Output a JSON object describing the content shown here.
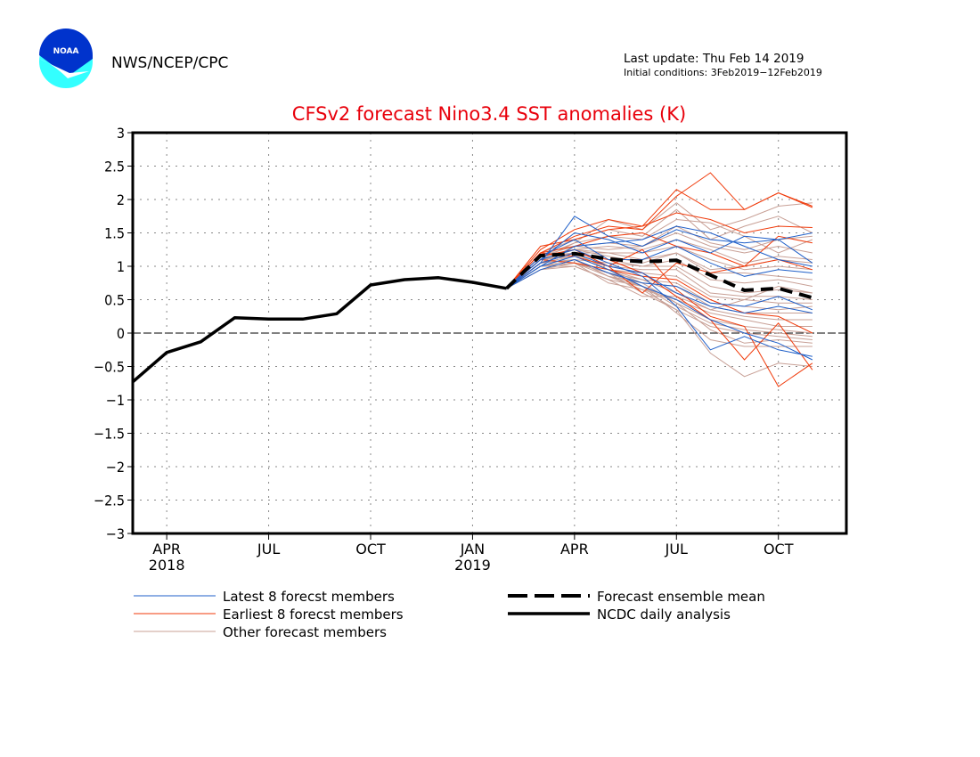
{
  "header": {
    "logo_text": "NOAA",
    "organization": "NWS/NCEP/CPC",
    "last_update": "Last update: Thu Feb 14 2019",
    "initial_conditions": "Initial conditions: 3Feb2019−12Feb2019"
  },
  "colors": {
    "title": "#e8000b",
    "latest": "#1f5fc8",
    "earliest": "#f03a0a",
    "other": "#c8a096",
    "observed": "#000000",
    "mean": "#000000",
    "logo_dark": "#0033cc",
    "logo_light": "#33ffff"
  },
  "chart_data": {
    "type": "line",
    "title": "CFSv2 forecast Nino3.4 SST anomalies (K)",
    "xlabel": "",
    "ylabel": "",
    "ylim": [
      -3,
      3
    ],
    "yticks": [
      3,
      2.5,
      2,
      1.5,
      1,
      0.5,
      0,
      -0.5,
      -1,
      -1.5,
      -2,
      -2.5,
      -3
    ],
    "ytick_labels": [
      "3",
      "2.5",
      "2",
      "1.5",
      "1",
      "0.5",
      "0",
      "−0.5",
      "−1",
      "−1.5",
      "−2",
      "−2.5",
      "−3"
    ],
    "xlim_months": [
      0,
      21
    ],
    "x_note": "month index 0 = Mar 2018",
    "xticks": [
      {
        "month": 1,
        "label": "APR",
        "year": "2018"
      },
      {
        "month": 4,
        "label": "JUL",
        "year": ""
      },
      {
        "month": 7,
        "label": "OCT",
        "year": ""
      },
      {
        "month": 10,
        "label": "JAN",
        "year": "2019"
      },
      {
        "month": 13,
        "label": "APR",
        "year": ""
      },
      {
        "month": 16,
        "label": "JUL",
        "year": ""
      },
      {
        "month": 19,
        "label": "OCT",
        "year": ""
      }
    ],
    "grid": true,
    "zero_line": true,
    "legend": [
      {
        "label": "Latest 8 forecst members",
        "key": "latest",
        "style": "thin"
      },
      {
        "label": "Earliest 8 forecst members",
        "key": "earliest",
        "style": "thin"
      },
      {
        "label": "Other forecast members",
        "key": "other",
        "style": "thin"
      },
      {
        "label": "Forecast ensemble mean",
        "key": "mean",
        "style": "dashed"
      },
      {
        "label": "NCDC daily analysis",
        "key": "observed",
        "style": "solid"
      }
    ],
    "legend_placement": "bottom",
    "observed": {
      "name": "NCDC daily analysis",
      "x": [
        0,
        1,
        2,
        3,
        4,
        5,
        6,
        7,
        8,
        9,
        10,
        11
      ],
      "values": [
        -0.73,
        -0.29,
        -0.13,
        0.23,
        0.21,
        0.21,
        0.29,
        0.72,
        0.8,
        0.83,
        0.76,
        0.67
      ]
    },
    "forecast_x": [
      11,
      12,
      13,
      14,
      15,
      16,
      17,
      18,
      19,
      20
    ],
    "ensemble_mean": {
      "name": "Forecast ensemble mean",
      "values": [
        0.67,
        1.16,
        1.19,
        1.11,
        1.07,
        1.09,
        0.87,
        0.64,
        0.67,
        0.53
      ]
    },
    "latest_members": [
      [
        0.67,
        1.05,
        1.75,
        1.45,
        1.3,
        1.55,
        1.4,
        1.35,
        1.4,
        1.05
      ],
      [
        0.67,
        1.1,
        1.5,
        1.4,
        1.2,
        1.4,
        1.2,
        1.45,
        1.4,
        1.5
      ],
      [
        0.67,
        1.0,
        1.3,
        1.35,
        1.4,
        1.6,
        1.5,
        1.3,
        1.1,
        1.0
      ],
      [
        0.67,
        1.15,
        1.4,
        1.1,
        1.1,
        1.3,
        1.05,
        0.85,
        0.95,
        0.9
      ],
      [
        0.67,
        0.95,
        1.1,
        0.9,
        0.75,
        0.7,
        0.45,
        0.4,
        0.55,
        0.35
      ],
      [
        0.67,
        1.05,
        1.2,
        1.0,
        0.9,
        0.6,
        0.4,
        0.3,
        0.4,
        0.3
      ],
      [
        0.67,
        1.1,
        1.25,
        1.05,
        0.85,
        0.4,
        -0.25,
        -0.05,
        -0.25,
        -0.35
      ],
      [
        0.67,
        1.0,
        1.15,
        0.95,
        0.7,
        0.5,
        0.2,
        0.0,
        -0.15,
        -0.4
      ]
    ],
    "earliest_members": [
      [
        0.67,
        1.25,
        1.55,
        1.7,
        1.6,
        2.15,
        1.85,
        1.85,
        2.1,
        1.9
      ],
      [
        0.67,
        1.2,
        1.45,
        1.6,
        1.55,
        2.05,
        2.4,
        1.85,
        2.1,
        1.88
      ],
      [
        0.67,
        1.3,
        1.4,
        1.55,
        1.6,
        1.8,
        1.7,
        1.5,
        1.6,
        1.58
      ],
      [
        0.67,
        1.2,
        1.3,
        1.45,
        1.5,
        1.3,
        1.2,
        1.0,
        1.45,
        1.35
      ],
      [
        0.67,
        1.15,
        1.25,
        1.0,
        0.6,
        1.05,
        0.9,
        1.0,
        1.1,
        0.95
      ],
      [
        0.67,
        1.1,
        1.05,
        0.95,
        0.85,
        0.8,
        0.5,
        0.3,
        0.25,
        0.0
      ],
      [
        0.67,
        1.2,
        1.15,
        1.0,
        1.25,
        0.65,
        0.25,
        0.1,
        -0.8,
        -0.45
      ],
      [
        0.67,
        1.05,
        1.2,
        1.1,
        0.9,
        0.55,
        0.2,
        -0.4,
        0.15,
        -0.55
      ]
    ],
    "other_members": [
      [
        0.67,
        1.15,
        1.35,
        1.7,
        1.55,
        1.95,
        1.55,
        1.7,
        1.9,
        1.95
      ],
      [
        0.67,
        1.2,
        1.4,
        1.55,
        1.45,
        1.85,
        1.4,
        1.6,
        1.75,
        1.5
      ],
      [
        0.67,
        1.1,
        1.35,
        1.45,
        1.4,
        1.7,
        1.65,
        1.45,
        1.2,
        1.4
      ],
      [
        0.67,
        1.15,
        1.3,
        1.35,
        1.3,
        1.5,
        1.3,
        1.2,
        1.3,
        1.2
      ],
      [
        0.67,
        1.1,
        1.25,
        1.3,
        1.25,
        1.4,
        1.25,
        1.05,
        1.15,
        1.1
      ],
      [
        0.67,
        1.05,
        1.2,
        1.2,
        1.2,
        1.3,
        1.1,
        0.95,
        1.0,
        0.95
      ],
      [
        0.67,
        1.1,
        1.25,
        1.15,
        1.05,
        1.2,
        0.9,
        0.9,
        0.85,
        0.8
      ],
      [
        0.67,
        1.15,
        1.2,
        1.1,
        1.0,
        1.1,
        0.8,
        0.75,
        0.8,
        0.7
      ],
      [
        0.67,
        1.0,
        1.1,
        1.05,
        1.0,
        1.0,
        0.7,
        0.6,
        0.65,
        0.6
      ],
      [
        0.67,
        1.05,
        1.15,
        1.0,
        0.95,
        0.95,
        0.6,
        0.55,
        0.55,
        0.5
      ],
      [
        0.67,
        1.1,
        1.2,
        0.95,
        0.9,
        0.85,
        0.55,
        0.5,
        0.45,
        0.45
      ],
      [
        0.67,
        1.0,
        1.05,
        0.9,
        0.8,
        0.75,
        0.45,
        0.4,
        0.35,
        0.4
      ],
      [
        0.67,
        1.05,
        1.1,
        0.85,
        0.75,
        0.7,
        0.4,
        0.3,
        0.3,
        0.3
      ],
      [
        0.67,
        0.95,
        1.0,
        0.8,
        0.55,
        0.55,
        0.35,
        0.25,
        0.2,
        0.2
      ],
      [
        0.67,
        1.0,
        1.05,
        0.75,
        0.65,
        0.5,
        0.3,
        0.2,
        0.1,
        0.1
      ],
      [
        0.67,
        1.05,
        1.1,
        0.85,
        0.7,
        0.45,
        0.2,
        0.1,
        0.05,
        0.0
      ],
      [
        0.67,
        1.0,
        1.0,
        0.8,
        0.7,
        0.4,
        0.15,
        0.05,
        0.0,
        -0.05
      ],
      [
        0.67,
        0.95,
        1.05,
        0.85,
        0.65,
        0.35,
        0.1,
        0.0,
        -0.05,
        -0.1
      ],
      [
        0.67,
        1.1,
        1.15,
        0.95,
        0.75,
        0.45,
        0.05,
        -0.15,
        -0.1,
        -0.15
      ],
      [
        0.67,
        1.05,
        1.1,
        0.9,
        0.7,
        0.3,
        -0.1,
        -0.2,
        -0.2,
        -0.2
      ],
      [
        0.67,
        1.0,
        1.05,
        0.9,
        0.6,
        0.35,
        -0.3,
        -0.65,
        -0.45,
        -0.5
      ],
      [
        0.67,
        1.1,
        1.15,
        0.95,
        0.8,
        0.6,
        0.35,
        0.5,
        0.7,
        0.6
      ],
      [
        0.67,
        1.15,
        1.25,
        1.2,
        1.1,
        1.2,
        0.95,
        1.0,
        1.1,
        1.05
      ],
      [
        0.67,
        1.05,
        1.3,
        1.25,
        1.3,
        1.6,
        1.35,
        1.25,
        1.4,
        1.45
      ]
    ]
  }
}
